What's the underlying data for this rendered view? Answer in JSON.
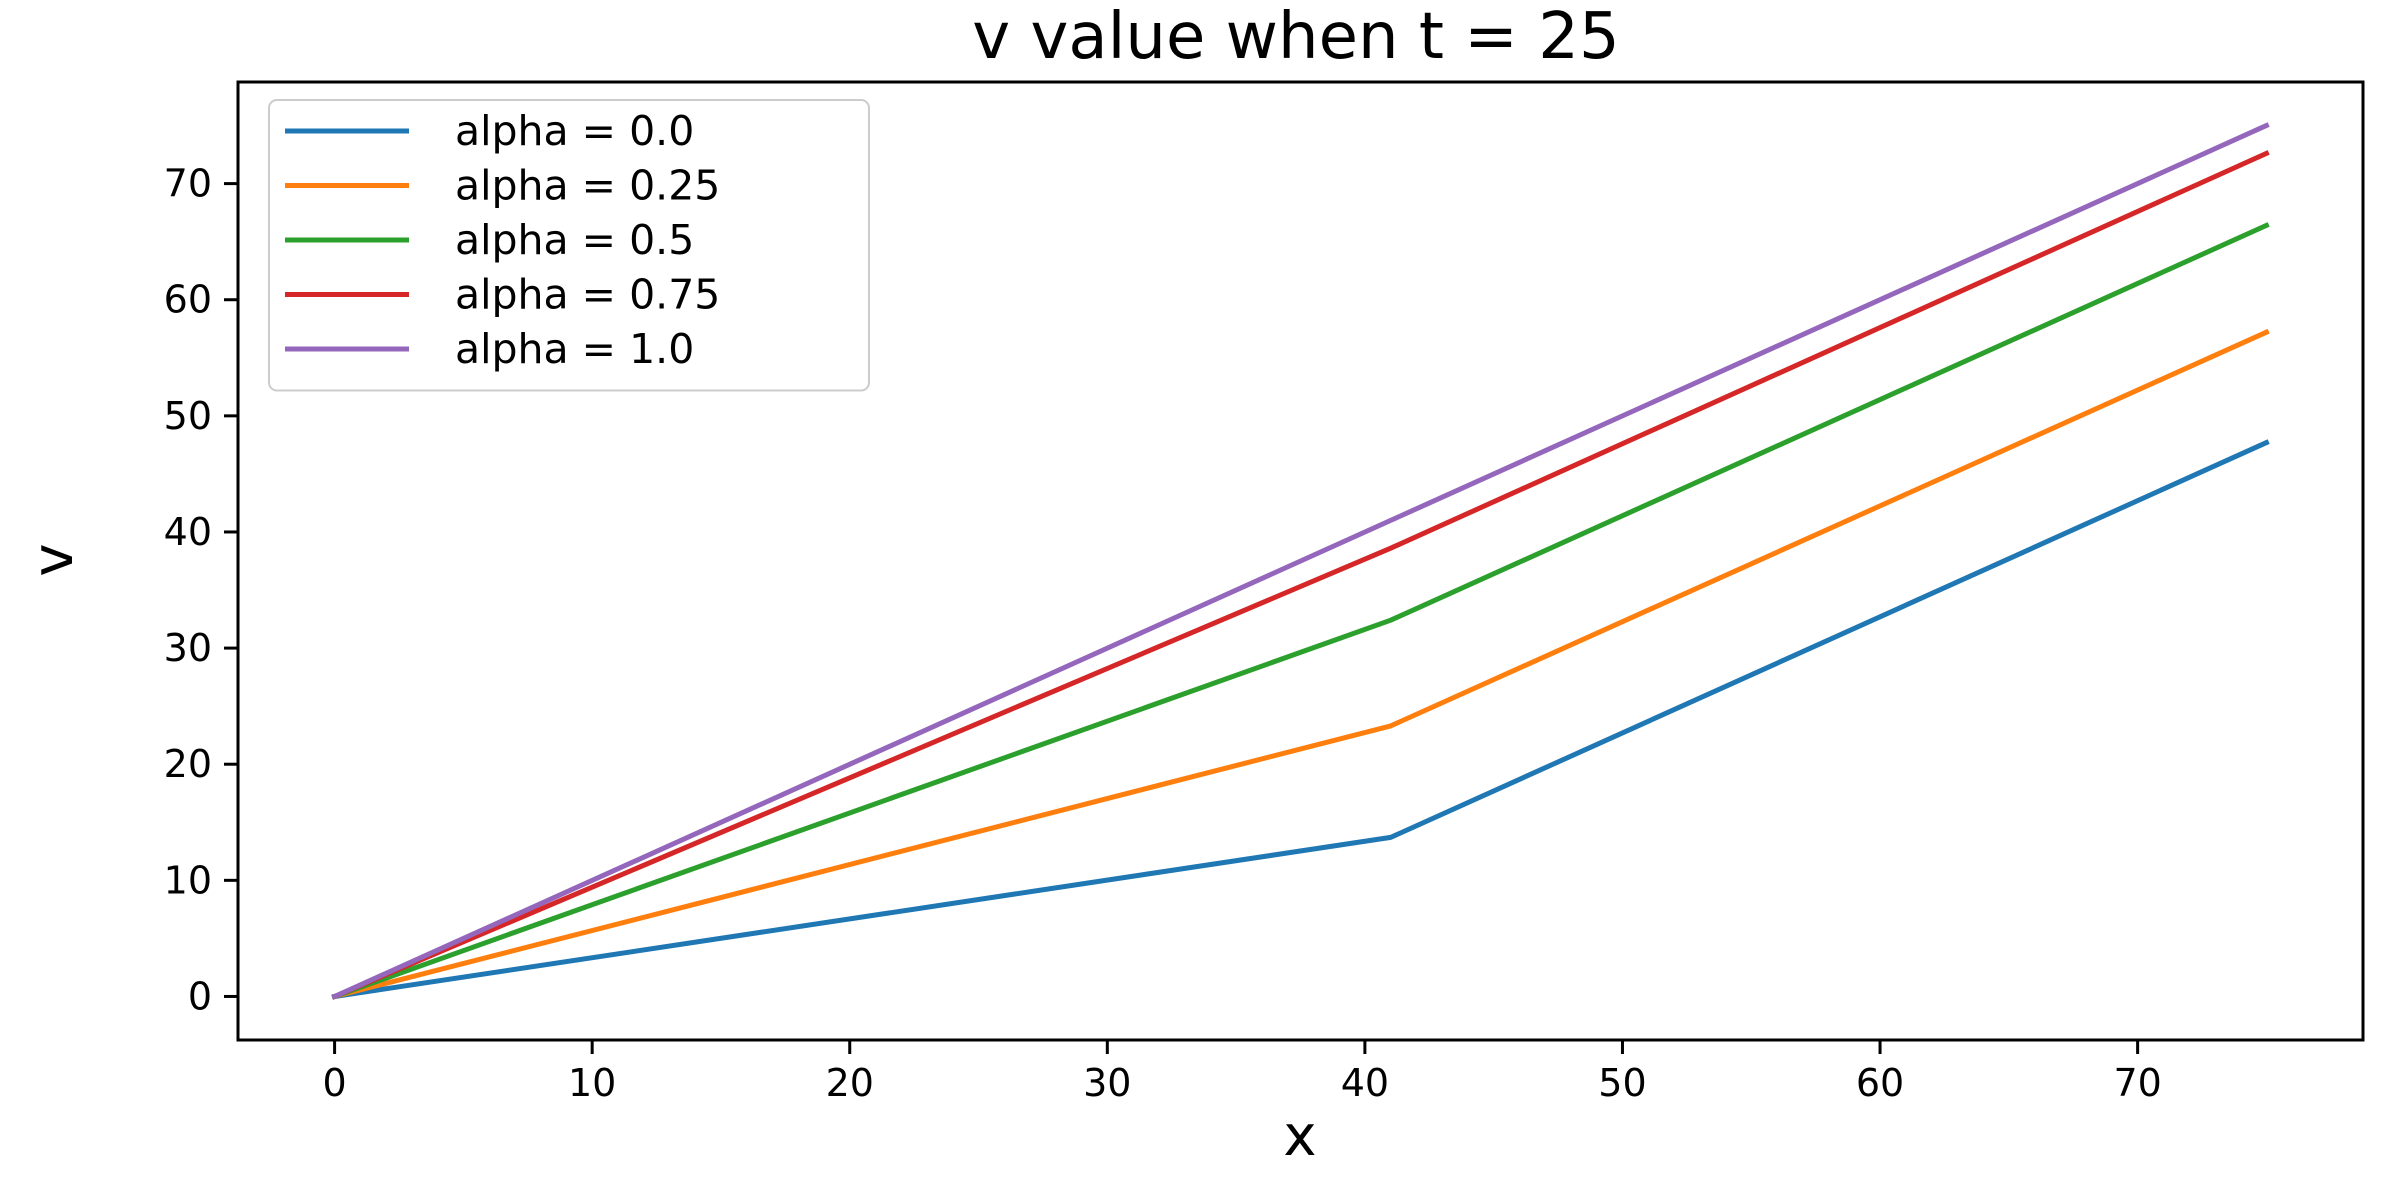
{
  "chart_data": {
    "type": "line",
    "title": "v value when t = 25",
    "xlabel": "x",
    "ylabel": "v",
    "xlim": [
      -3.75,
      78.75
    ],
    "ylim": [
      -3.75,
      78.75
    ],
    "xticks": [
      0,
      10,
      20,
      30,
      40,
      50,
      60,
      70
    ],
    "yticks": [
      0,
      10,
      20,
      30,
      40,
      50,
      60,
      70
    ],
    "grid": false,
    "legend_position": "top-left",
    "series": [
      {
        "name": "alpha = 0.0",
        "color": "#1f77b4",
        "x": [
          0,
          41,
          75
        ],
        "y": [
          0,
          13.7,
          47.7
        ]
      },
      {
        "name": "alpha = 0.25",
        "color": "#ff7f0e",
        "x": [
          0,
          41,
          75
        ],
        "y": [
          0,
          23.3,
          57.2
        ]
      },
      {
        "name": "alpha = 0.5",
        "color": "#2ca02c",
        "x": [
          0,
          41,
          75
        ],
        "y": [
          0,
          32.4,
          66.4
        ]
      },
      {
        "name": "alpha = 0.75",
        "color": "#d62728",
        "x": [
          0,
          41,
          75
        ],
        "y": [
          0,
          38.6,
          72.6
        ]
      },
      {
        "name": "alpha = 1.0",
        "color": "#9467bd",
        "x": [
          0,
          41,
          75
        ],
        "y": [
          0,
          41.0,
          75.0
        ]
      }
    ]
  }
}
